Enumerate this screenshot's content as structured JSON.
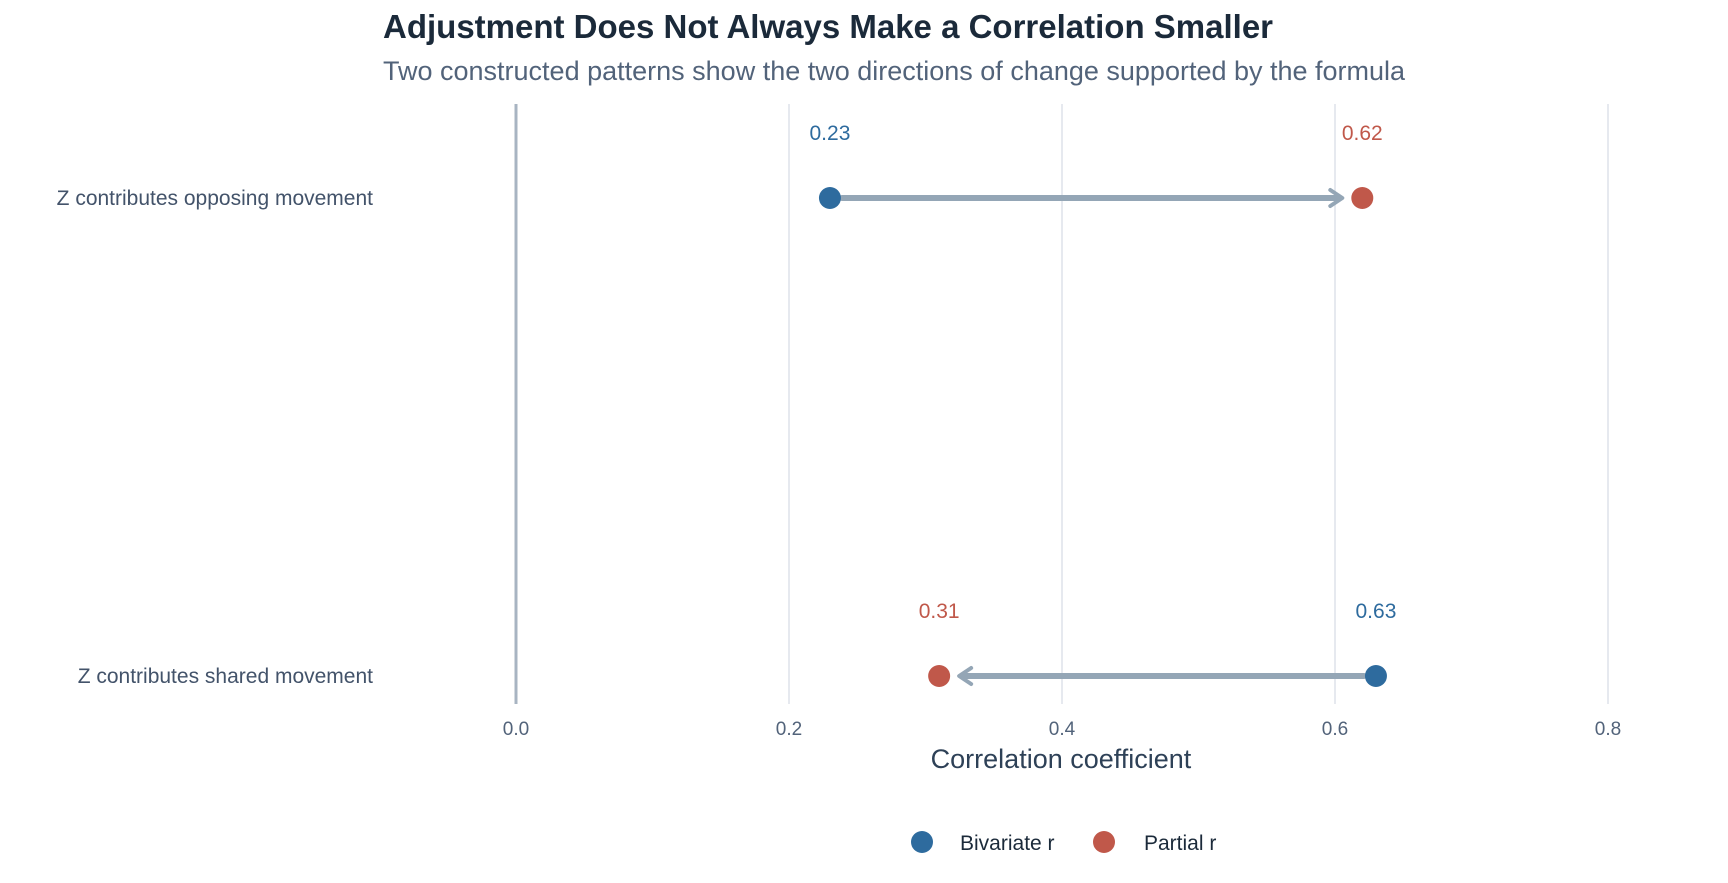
{
  "title": "Adjustment Does Not Always Make a Correlation Smaller",
  "subtitle": "Two constructed patterns show the two directions of change supported by the formula",
  "chart_data": {
    "type": "dumbbell",
    "xlabel": "Correlation coefficient",
    "xlim": [
      0.0,
      0.8
    ],
    "xticks": [
      0.0,
      0.2,
      0.4,
      0.6,
      0.8
    ],
    "xtick_labels": [
      "0.0",
      "0.2",
      "0.4",
      "0.6",
      "0.8"
    ],
    "grid": true,
    "legend_position": "bottom",
    "series": [
      {
        "name": "Bivariate r",
        "color": "#2e6b9e"
      },
      {
        "name": "Partial r",
        "color": "#c0584a"
      }
    ],
    "rows": [
      {
        "category": "Z contributes opposing movement",
        "bivariate": 0.23,
        "partial": 0.62,
        "bivariate_label": "0.23",
        "partial_label": "0.62"
      },
      {
        "category": "Z contributes shared movement",
        "bivariate": 0.63,
        "partial": 0.31,
        "bivariate_label": "0.63",
        "partial_label": "0.31"
      }
    ],
    "arrow_color": "#94a6b6",
    "axis_color": "#a8b4c2",
    "grid_color": "#e6e9ef"
  }
}
